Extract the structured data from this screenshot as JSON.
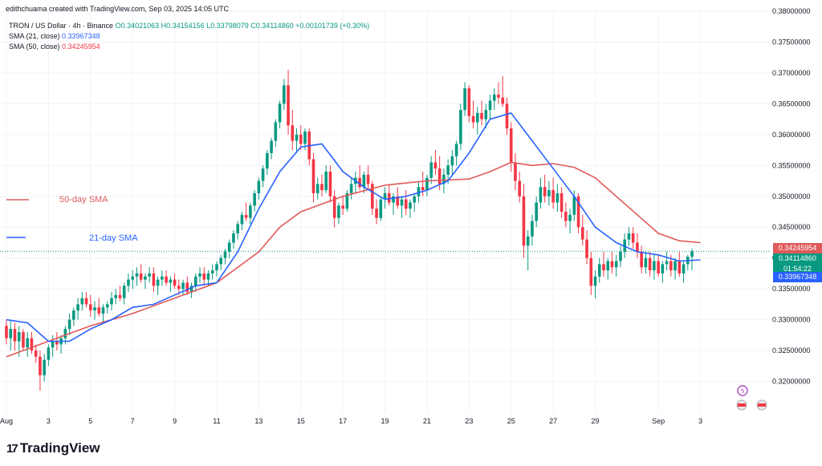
{
  "header": {
    "credit": "edithchuama created with TradingView.com, Sep 03, 2025 14:05 UTC",
    "symbol": "TRON / US Dollar · 4h · Binance",
    "ohlc": "O0.34021063 H0.34154156 L0.33798079 C0.34114860 +0.00101739 (+0.30%)",
    "sma21_label": "SMA (21, close)",
    "sma21_value": "0.33967348",
    "sma50_label": "SMA (50, close)",
    "sma50_value": "0.34245954"
  },
  "annotations": {
    "sma50": "50-day SMA",
    "sma21": "21-day SMA"
  },
  "price_tags": {
    "sma50": "0.34245954",
    "last": "0.34114860",
    "countdown": "01:54:22",
    "sma21": "0.33967348"
  },
  "branding": {
    "logo_text": "TradingView",
    "logo_mark": "17"
  },
  "colors": {
    "up": "#089981",
    "down": "#f23645",
    "sma21": "#2962ff",
    "sma50": "#e05a5a",
    "grid": "#f0f3fa",
    "axis_text": "#131722"
  },
  "chart_data": {
    "type": "candlestick",
    "title": "TRON / US Dollar · 4h · Binance",
    "ylim": [
      0.315,
      0.38
    ],
    "y_ticks": [
      "0.38000000",
      "0.37500000",
      "0.37000000",
      "0.36500000",
      "0.36000000",
      "0.35500000",
      "0.35000000",
      "0.34500000",
      "0.34000000",
      "0.33500000",
      "0.33000000",
      "0.32500000",
      "0.32000000"
    ],
    "x_tick_labels": [
      "Aug",
      "3",
      "5",
      "7",
      "9",
      "11",
      "13",
      "15",
      "17",
      "19",
      "21",
      "23",
      "25",
      "27",
      "29",
      "Sep",
      "3"
    ],
    "x_tick_days": [
      1,
      3,
      5,
      7,
      9,
      11,
      13,
      15,
      17,
      19,
      21,
      23,
      25,
      27,
      29,
      32,
      34
    ],
    "xlim_days": [
      1,
      36.5
    ],
    "sma21": {
      "name": "SMA (21, close)",
      "points": [
        [
          1,
          0.33
        ],
        [
          2,
          0.3295
        ],
        [
          3,
          0.3265
        ],
        [
          4,
          0.3265
        ],
        [
          5,
          0.3285
        ],
        [
          6,
          0.33
        ],
        [
          7,
          0.332
        ],
        [
          8,
          0.3325
        ],
        [
          9,
          0.334
        ],
        [
          10,
          0.3355
        ],
        [
          11,
          0.336
        ],
        [
          12,
          0.341
        ],
        [
          13,
          0.348
        ],
        [
          14,
          0.354
        ],
        [
          15,
          0.358
        ],
        [
          16,
          0.3585
        ],
        [
          17,
          0.354
        ],
        [
          18,
          0.3515
        ],
        [
          19,
          0.3495
        ],
        [
          20,
          0.35
        ],
        [
          21,
          0.351
        ],
        [
          22,
          0.3525
        ],
        [
          23,
          0.357
        ],
        [
          24,
          0.3625
        ],
        [
          25,
          0.3635
        ],
        [
          26,
          0.359
        ],
        [
          27,
          0.3545
        ],
        [
          28,
          0.35
        ],
        [
          29,
          0.345
        ],
        [
          30,
          0.3425
        ],
        [
          31,
          0.341
        ],
        [
          32,
          0.3405
        ],
        [
          33,
          0.3395
        ],
        [
          34,
          0.3397
        ]
      ]
    },
    "sma50": {
      "name": "SMA (50, close)",
      "points": [
        [
          1,
          0.324
        ],
        [
          3,
          0.3265
        ],
        [
          5,
          0.329
        ],
        [
          7,
          0.331
        ],
        [
          9,
          0.3335
        ],
        [
          11,
          0.336
        ],
        [
          13,
          0.341
        ],
        [
          14,
          0.345
        ],
        [
          15,
          0.3475
        ],
        [
          17,
          0.35
        ],
        [
          19,
          0.3518
        ],
        [
          21,
          0.3525
        ],
        [
          23,
          0.3528
        ],
        [
          24,
          0.354
        ],
        [
          25,
          0.3555
        ],
        [
          26,
          0.355
        ],
        [
          27,
          0.3553
        ],
        [
          28,
          0.3547
        ],
        [
          29,
          0.353
        ],
        [
          30,
          0.35
        ],
        [
          31,
          0.347
        ],
        [
          32,
          0.344
        ],
        [
          33,
          0.3428
        ],
        [
          34,
          0.3425
        ]
      ]
    },
    "candles": [
      [
        1.0,
        0.329,
        0.33,
        0.326,
        0.327
      ],
      [
        1.2,
        0.327,
        0.33,
        0.325,
        0.3285
      ],
      [
        1.4,
        0.3285,
        0.3295,
        0.325,
        0.3265
      ],
      [
        1.6,
        0.3265,
        0.329,
        0.324,
        0.328
      ],
      [
        1.8,
        0.328,
        0.3285,
        0.325,
        0.3255
      ],
      [
        2.0,
        0.3255,
        0.328,
        0.324,
        0.327
      ],
      [
        2.2,
        0.327,
        0.328,
        0.3245,
        0.325
      ],
      [
        2.4,
        0.325,
        0.326,
        0.323,
        0.324
      ],
      [
        2.6,
        0.324,
        0.325,
        0.3185,
        0.321
      ],
      [
        2.8,
        0.321,
        0.3245,
        0.32,
        0.3235
      ],
      [
        3.0,
        0.3235,
        0.326,
        0.3225,
        0.3255
      ],
      [
        3.2,
        0.3255,
        0.3275,
        0.324,
        0.3265
      ],
      [
        3.4,
        0.3265,
        0.328,
        0.325,
        0.326
      ],
      [
        3.6,
        0.326,
        0.3275,
        0.3245,
        0.327
      ],
      [
        3.8,
        0.327,
        0.329,
        0.326,
        0.3285
      ],
      [
        4.0,
        0.3285,
        0.331,
        0.3275,
        0.33
      ],
      [
        4.2,
        0.33,
        0.332,
        0.329,
        0.3315
      ],
      [
        4.4,
        0.3315,
        0.3335,
        0.33,
        0.3325
      ],
      [
        4.6,
        0.3325,
        0.3345,
        0.3315,
        0.3335
      ],
      [
        4.8,
        0.3335,
        0.3345,
        0.332,
        0.3325
      ],
      [
        5.0,
        0.3325,
        0.334,
        0.3305,
        0.3315
      ],
      [
        5.2,
        0.3315,
        0.333,
        0.33,
        0.332
      ],
      [
        5.4,
        0.332,
        0.3335,
        0.3305,
        0.331
      ],
      [
        5.6,
        0.331,
        0.3325,
        0.3295,
        0.332
      ],
      [
        5.8,
        0.332,
        0.333,
        0.331,
        0.3325
      ],
      [
        6.0,
        0.3325,
        0.3345,
        0.3315,
        0.3335
      ],
      [
        6.2,
        0.3335,
        0.335,
        0.3325,
        0.334
      ],
      [
        6.4,
        0.334,
        0.3355,
        0.333,
        0.3335
      ],
      [
        6.6,
        0.3335,
        0.336,
        0.3325,
        0.3355
      ],
      [
        6.8,
        0.3355,
        0.3375,
        0.3345,
        0.3365
      ],
      [
        7.0,
        0.3365,
        0.338,
        0.335,
        0.337
      ],
      [
        7.2,
        0.337,
        0.3385,
        0.3355,
        0.3375
      ],
      [
        7.4,
        0.3375,
        0.339,
        0.336,
        0.3365
      ],
      [
        7.6,
        0.3365,
        0.3375,
        0.335,
        0.337
      ],
      [
        7.8,
        0.337,
        0.3385,
        0.336,
        0.3375
      ],
      [
        8.0,
        0.3375,
        0.3385,
        0.3345,
        0.3355
      ],
      [
        8.2,
        0.3355,
        0.337,
        0.334,
        0.3365
      ],
      [
        8.4,
        0.3365,
        0.338,
        0.3355,
        0.337
      ],
      [
        8.6,
        0.337,
        0.338,
        0.3355,
        0.336
      ],
      [
        8.8,
        0.336,
        0.337,
        0.3345,
        0.3365
      ],
      [
        9.0,
        0.3365,
        0.3375,
        0.335,
        0.3355
      ],
      [
        9.2,
        0.3355,
        0.3365,
        0.334,
        0.335
      ],
      [
        9.4,
        0.335,
        0.3365,
        0.334,
        0.336
      ],
      [
        9.6,
        0.336,
        0.337,
        0.334,
        0.3345
      ],
      [
        9.8,
        0.3345,
        0.336,
        0.3335,
        0.3355
      ],
      [
        10.0,
        0.3355,
        0.3375,
        0.3345,
        0.337
      ],
      [
        10.2,
        0.337,
        0.3385,
        0.336,
        0.3375
      ],
      [
        10.4,
        0.3375,
        0.3385,
        0.3355,
        0.3365
      ],
      [
        10.6,
        0.3365,
        0.338,
        0.3355,
        0.3375
      ],
      [
        10.8,
        0.3375,
        0.339,
        0.3365,
        0.338
      ],
      [
        11.0,
        0.338,
        0.3395,
        0.337,
        0.339
      ],
      [
        11.2,
        0.339,
        0.3405,
        0.338,
        0.34
      ],
      [
        11.4,
        0.34,
        0.3415,
        0.339,
        0.341
      ],
      [
        11.6,
        0.341,
        0.343,
        0.34,
        0.3425
      ],
      [
        11.8,
        0.3425,
        0.3445,
        0.3415,
        0.344
      ],
      [
        12.0,
        0.344,
        0.346,
        0.343,
        0.3455
      ],
      [
        12.2,
        0.3455,
        0.3475,
        0.3445,
        0.347
      ],
      [
        12.4,
        0.347,
        0.349,
        0.346,
        0.3465
      ],
      [
        12.6,
        0.3465,
        0.349,
        0.3455,
        0.3485
      ],
      [
        12.8,
        0.3485,
        0.351,
        0.3475,
        0.3505
      ],
      [
        13.0,
        0.3505,
        0.353,
        0.3495,
        0.3525
      ],
      [
        13.2,
        0.3525,
        0.355,
        0.3515,
        0.3545
      ],
      [
        13.4,
        0.3545,
        0.3575,
        0.3535,
        0.357
      ],
      [
        13.6,
        0.357,
        0.3595,
        0.356,
        0.359
      ],
      [
        13.8,
        0.359,
        0.3625,
        0.358,
        0.362
      ],
      [
        14.0,
        0.362,
        0.3655,
        0.361,
        0.365
      ],
      [
        14.2,
        0.365,
        0.369,
        0.364,
        0.368
      ],
      [
        14.4,
        0.368,
        0.3705,
        0.36,
        0.3615
      ],
      [
        14.6,
        0.3615,
        0.364,
        0.3575,
        0.359
      ],
      [
        14.8,
        0.359,
        0.361,
        0.357,
        0.36
      ],
      [
        15.0,
        0.36,
        0.3615,
        0.3575,
        0.3585
      ],
      [
        15.2,
        0.3585,
        0.361,
        0.3575,
        0.3605
      ],
      [
        15.4,
        0.3605,
        0.361,
        0.355,
        0.356
      ],
      [
        15.6,
        0.356,
        0.357,
        0.349,
        0.3505
      ],
      [
        15.8,
        0.3505,
        0.353,
        0.3495,
        0.352
      ],
      [
        16.0,
        0.352,
        0.3535,
        0.35,
        0.351
      ],
      [
        16.2,
        0.351,
        0.355,
        0.3505,
        0.354
      ],
      [
        16.4,
        0.354,
        0.355,
        0.349,
        0.35
      ],
      [
        16.6,
        0.35,
        0.351,
        0.345,
        0.3465
      ],
      [
        16.8,
        0.3465,
        0.349,
        0.3455,
        0.3485
      ],
      [
        17.0,
        0.3485,
        0.35,
        0.347,
        0.348
      ],
      [
        17.2,
        0.348,
        0.351,
        0.3475,
        0.3505
      ],
      [
        17.4,
        0.3505,
        0.353,
        0.3495,
        0.352
      ],
      [
        17.6,
        0.352,
        0.354,
        0.3505,
        0.353
      ],
      [
        17.8,
        0.353,
        0.355,
        0.351,
        0.3515
      ],
      [
        18.0,
        0.3515,
        0.354,
        0.3505,
        0.3535
      ],
      [
        18.2,
        0.3535,
        0.355,
        0.351,
        0.352
      ],
      [
        18.4,
        0.352,
        0.3525,
        0.347,
        0.348
      ],
      [
        18.6,
        0.348,
        0.3495,
        0.3455,
        0.3465
      ],
      [
        18.8,
        0.3465,
        0.35,
        0.346,
        0.3495
      ],
      [
        19.0,
        0.3495,
        0.3515,
        0.348,
        0.3505
      ],
      [
        19.2,
        0.3505,
        0.352,
        0.3485,
        0.349
      ],
      [
        19.4,
        0.349,
        0.3505,
        0.347,
        0.35
      ],
      [
        19.6,
        0.35,
        0.3515,
        0.348,
        0.3485
      ],
      [
        19.8,
        0.3485,
        0.35,
        0.3465,
        0.3495
      ],
      [
        20.0,
        0.3495,
        0.351,
        0.347,
        0.348
      ],
      [
        20.2,
        0.348,
        0.3495,
        0.3465,
        0.349
      ],
      [
        20.4,
        0.349,
        0.3505,
        0.3475,
        0.35
      ],
      [
        20.6,
        0.35,
        0.3525,
        0.349,
        0.3515
      ],
      [
        20.8,
        0.3515,
        0.354,
        0.35,
        0.351
      ],
      [
        21.0,
        0.351,
        0.3535,
        0.35,
        0.353
      ],
      [
        21.2,
        0.353,
        0.3565,
        0.352,
        0.3555
      ],
      [
        21.4,
        0.3555,
        0.3575,
        0.3535,
        0.3545
      ],
      [
        21.6,
        0.3545,
        0.3565,
        0.351,
        0.352
      ],
      [
        21.8,
        0.352,
        0.3545,
        0.3505,
        0.3535
      ],
      [
        22.0,
        0.3535,
        0.356,
        0.352,
        0.355
      ],
      [
        22.2,
        0.355,
        0.3575,
        0.3535,
        0.3565
      ],
      [
        22.4,
        0.3565,
        0.359,
        0.355,
        0.3585
      ],
      [
        22.6,
        0.3585,
        0.365,
        0.3575,
        0.364
      ],
      [
        22.8,
        0.364,
        0.3685,
        0.363,
        0.3675
      ],
      [
        23.0,
        0.3675,
        0.368,
        0.362,
        0.363
      ],
      [
        23.2,
        0.363,
        0.3655,
        0.361,
        0.362
      ],
      [
        23.4,
        0.362,
        0.3645,
        0.36,
        0.3635
      ],
      [
        23.6,
        0.3635,
        0.3655,
        0.3615,
        0.3625
      ],
      [
        23.8,
        0.3625,
        0.365,
        0.361,
        0.364
      ],
      [
        24.0,
        0.364,
        0.3665,
        0.3625,
        0.3655
      ],
      [
        24.2,
        0.3655,
        0.3675,
        0.364,
        0.3665
      ],
      [
        24.4,
        0.3665,
        0.3685,
        0.365,
        0.366
      ],
      [
        24.6,
        0.366,
        0.3695,
        0.3645,
        0.365
      ],
      [
        24.8,
        0.365,
        0.366,
        0.36,
        0.361
      ],
      [
        25.0,
        0.361,
        0.362,
        0.354,
        0.3555
      ],
      [
        25.2,
        0.3555,
        0.357,
        0.351,
        0.3525
      ],
      [
        25.4,
        0.3525,
        0.354,
        0.349,
        0.35
      ],
      [
        25.6,
        0.35,
        0.352,
        0.34,
        0.342
      ],
      [
        25.8,
        0.342,
        0.3445,
        0.338,
        0.3435
      ],
      [
        26.0,
        0.3435,
        0.347,
        0.342,
        0.346
      ],
      [
        26.2,
        0.346,
        0.35,
        0.345,
        0.349
      ],
      [
        26.4,
        0.349,
        0.353,
        0.348,
        0.3515
      ],
      [
        26.6,
        0.3515,
        0.3535,
        0.349,
        0.35
      ],
      [
        26.8,
        0.35,
        0.3525,
        0.3485,
        0.351
      ],
      [
        27.0,
        0.351,
        0.353,
        0.348,
        0.349
      ],
      [
        27.2,
        0.349,
        0.352,
        0.3475,
        0.3505
      ],
      [
        27.4,
        0.3505,
        0.3515,
        0.3465,
        0.3475
      ],
      [
        27.6,
        0.3475,
        0.349,
        0.345,
        0.346
      ],
      [
        27.8,
        0.346,
        0.348,
        0.344,
        0.347
      ],
      [
        28.0,
        0.347,
        0.351,
        0.346,
        0.35
      ],
      [
        28.2,
        0.35,
        0.3505,
        0.344,
        0.345
      ],
      [
        28.4,
        0.345,
        0.347,
        0.342,
        0.343
      ],
      [
        28.6,
        0.343,
        0.3445,
        0.339,
        0.34
      ],
      [
        28.8,
        0.34,
        0.341,
        0.334,
        0.3355
      ],
      [
        29.0,
        0.3355,
        0.338,
        0.3335,
        0.337
      ],
      [
        29.2,
        0.337,
        0.34,
        0.336,
        0.339
      ],
      [
        29.4,
        0.339,
        0.341,
        0.337,
        0.338
      ],
      [
        29.6,
        0.338,
        0.34,
        0.3365,
        0.3395
      ],
      [
        29.8,
        0.3395,
        0.341,
        0.3375,
        0.3385
      ],
      [
        30.0,
        0.3385,
        0.3405,
        0.337,
        0.3395
      ],
      [
        30.2,
        0.3395,
        0.342,
        0.3385,
        0.341
      ],
      [
        30.4,
        0.341,
        0.344,
        0.34,
        0.343
      ],
      [
        30.6,
        0.343,
        0.345,
        0.342,
        0.344
      ],
      [
        30.8,
        0.344,
        0.345,
        0.3415,
        0.3425
      ],
      [
        31.0,
        0.3425,
        0.344,
        0.34,
        0.341
      ],
      [
        31.2,
        0.341,
        0.342,
        0.3375,
        0.3385
      ],
      [
        31.4,
        0.3385,
        0.341,
        0.3375,
        0.34
      ],
      [
        31.6,
        0.34,
        0.341,
        0.337,
        0.338
      ],
      [
        31.8,
        0.338,
        0.3405,
        0.3365,
        0.3395
      ],
      [
        32.0,
        0.3395,
        0.3405,
        0.337,
        0.3375
      ],
      [
        32.2,
        0.3375,
        0.3395,
        0.336,
        0.339
      ],
      [
        32.4,
        0.339,
        0.341,
        0.338,
        0.3395
      ],
      [
        32.6,
        0.3395,
        0.3405,
        0.337,
        0.338
      ],
      [
        32.8,
        0.338,
        0.34,
        0.3365,
        0.3395
      ],
      [
        33.0,
        0.3395,
        0.341,
        0.337,
        0.3375
      ],
      [
        33.2,
        0.3375,
        0.3395,
        0.336,
        0.339
      ],
      [
        33.4,
        0.339,
        0.3405,
        0.338,
        0.3402
      ],
      [
        33.6,
        0.3402,
        0.3415,
        0.338,
        0.3411
      ]
    ]
  }
}
